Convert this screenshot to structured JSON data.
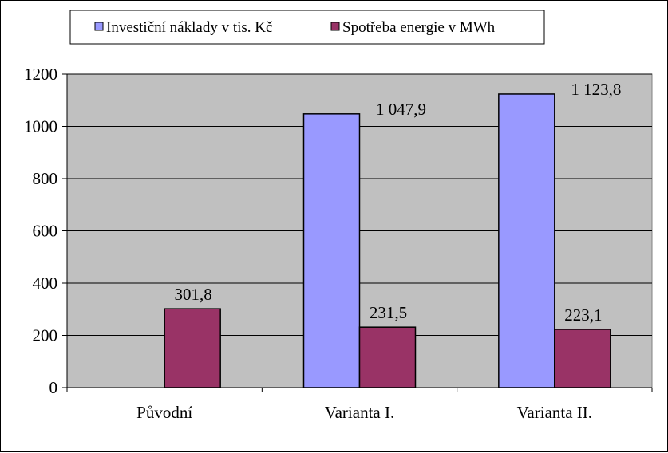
{
  "chart_data": {
    "type": "bar",
    "categories": [
      "Původní",
      "Varianta I.",
      "Varianta II."
    ],
    "series": [
      {
        "name": "Investiční náklady v tis. Kč",
        "values": [
          0,
          1047.9,
          1123.8
        ],
        "labels": [
          "",
          "1 047,9",
          "1 123,8"
        ],
        "color": "#9999ff"
      },
      {
        "name": "Spotřeba energie v MWh",
        "values": [
          301.8,
          231.5,
          223.1
        ],
        "labels": [
          "301,8",
          "231,5",
          "223,1"
        ],
        "color": "#993366"
      }
    ],
    "ylim": [
      0,
      1200
    ],
    "yticks": [
      "0",
      "200",
      "400",
      "600",
      "800",
      "1000",
      "1200"
    ],
    "plot_background": "#c0c0c0",
    "grid": true,
    "legend_position": "top"
  }
}
